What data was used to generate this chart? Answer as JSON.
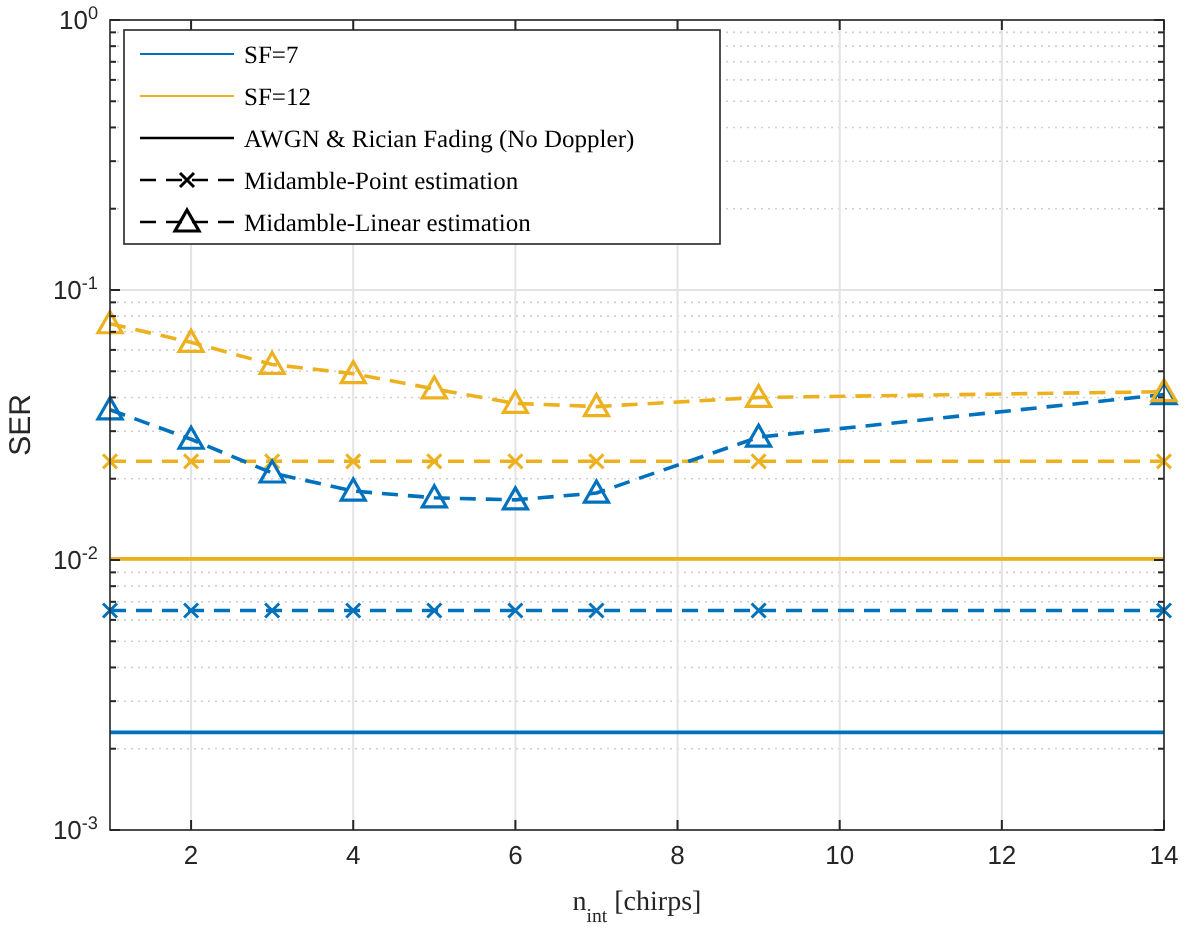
{
  "chart_data": {
    "type": "line",
    "xlabel": "n$_{int}$ [chirps]",
    "ylabel": "SER",
    "log": "y",
    "grid": true,
    "legend": "top left",
    "xlim": [
      1,
      14
    ],
    "xticks": [
      2,
      4,
      6,
      8,
      10,
      12,
      14
    ],
    "ylim": [
      0.001,
      1
    ],
    "yticks": [
      {
        "value": 0.001,
        "label": "10$^{-3}$"
      },
      {
        "value": 0.01,
        "label": "10$^{-2}$"
      },
      {
        "value": 0.1,
        "label": "10$^{-1}$"
      },
      {
        "value": 1,
        "label": "10$^{0}$"
      }
    ],
    "series": [
      {
        "name": "SF=7",
        "color": "#0072bd",
        "line_style": "solid",
        "marker": "none"
      },
      {
        "name": "SF=12",
        "color": "#edb120",
        "line_style": "solid",
        "marker": "none"
      },
      {
        "name": "AWGN & Rician Fading (No Doppler)",
        "color": "#000000",
        "line_style": "solid",
        "marker": "none"
      },
      {
        "name": "Midamble-Point estimation",
        "color": "#000000",
        "line_style": "dashed",
        "marker": "cross"
      },
      {
        "name": "Midamble-Linear estimation",
        "color": "#000000",
        "line_style": "dashed",
        "marker": "triangle"
      },
      {
        "color": "#0072bd",
        "line_style": "solid",
        "marker": "none",
        "x": [
          1,
          14
        ],
        "values": [
          0.0023,
          0.0023
        ]
      },
      {
        "color": "#edb120",
        "line_style": "solid",
        "marker": "none",
        "x": [
          1,
          14
        ],
        "values": [
          0.0101,
          0.0101
        ]
      },
      {
        "color": "#0072bd",
        "line_style": "dashed",
        "marker": "cross",
        "x": [
          1,
          2,
          3,
          4,
          5,
          6,
          7,
          9,
          14
        ],
        "values": [
          0.0065,
          0.0065,
          0.0065,
          0.0065,
          0.0065,
          0.0065,
          0.0065,
          0.0065,
          0.0065
        ]
      },
      {
        "color": "#edb120",
        "line_style": "dashed",
        "marker": "cross",
        "x": [
          1,
          2,
          3,
          4,
          5,
          6,
          7,
          9,
          14
        ],
        "values": [
          0.0232,
          0.0232,
          0.0232,
          0.0232,
          0.0232,
          0.0232,
          0.0232,
          0.0232,
          0.0232
        ]
      },
      {
        "color": "#0072bd",
        "line_style": "dashed",
        "marker": "triangle",
        "x": [
          1,
          2,
          3,
          4,
          5,
          6,
          7,
          9,
          14
        ],
        "values": [
          0.036,
          0.028,
          0.021,
          0.018,
          0.017,
          0.0167,
          0.0177,
          0.0285,
          0.041
        ]
      },
      {
        "color": "#edb120",
        "line_style": "dashed",
        "marker": "triangle",
        "x": [
          1,
          2,
          3,
          4,
          5,
          6,
          7,
          9,
          14
        ],
        "values": [
          0.075,
          0.064,
          0.053,
          0.049,
          0.043,
          0.038,
          0.037,
          0.04,
          0.042
        ]
      }
    ]
  }
}
